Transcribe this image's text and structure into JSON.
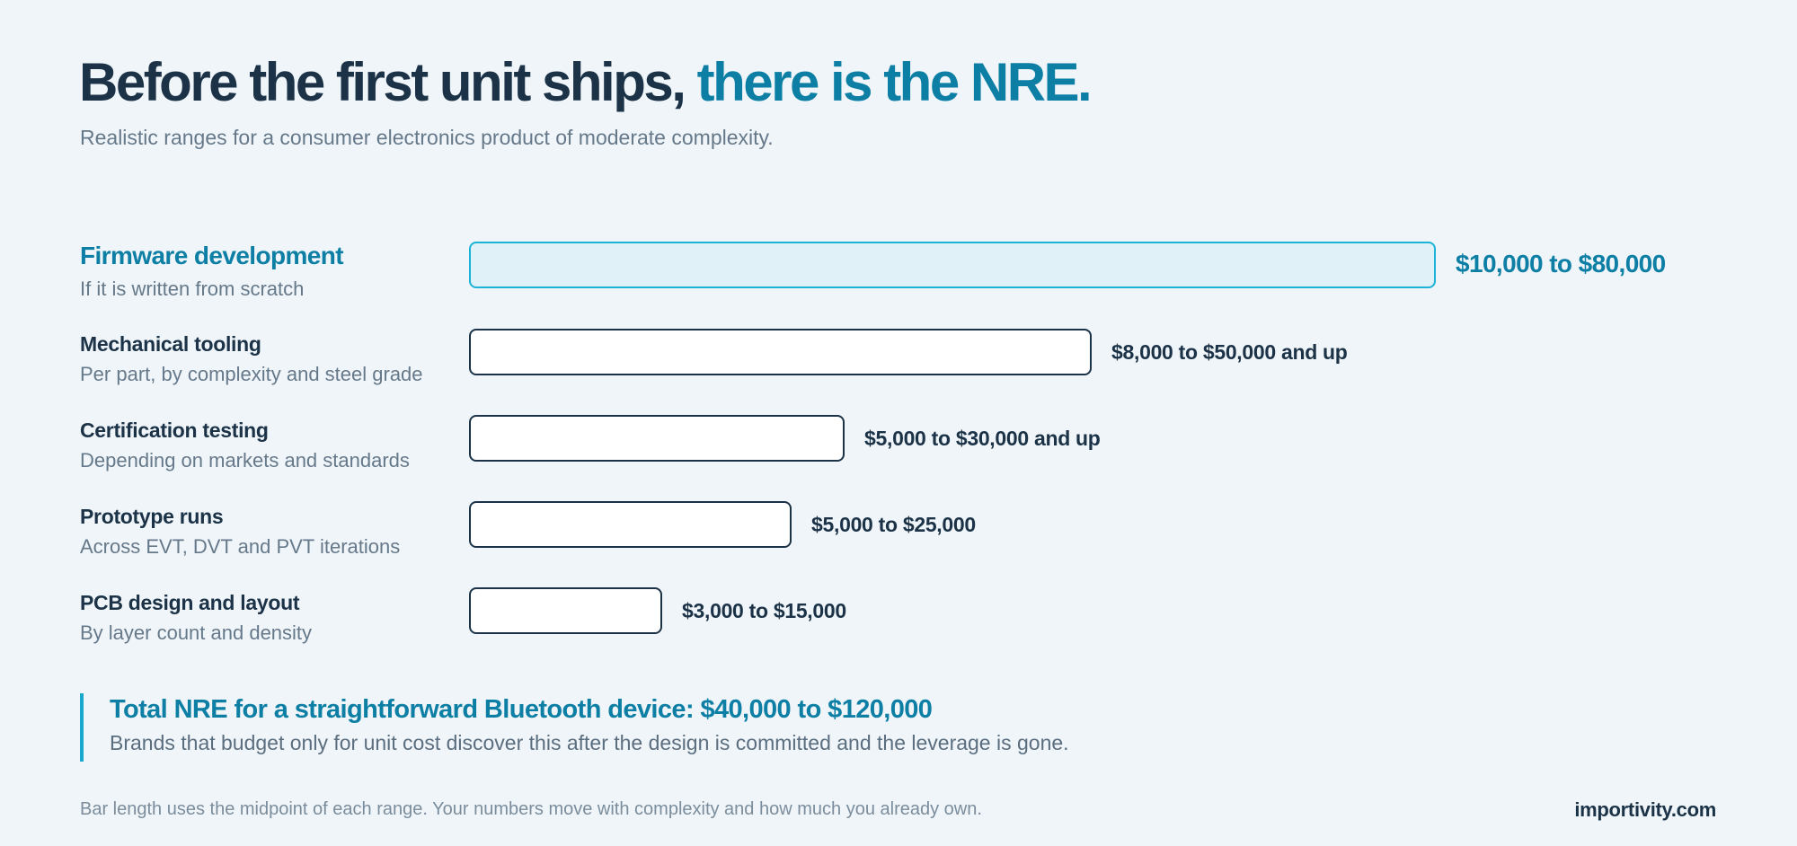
{
  "header": {
    "title_main": "Before the first unit ships,",
    "title_accent": "there is the NRE.",
    "subtitle": "Realistic ranges for a consumer electronics product of moderate complexity."
  },
  "colors": {
    "ink": "#1b3247",
    "accent": "#0d7fa5",
    "accent_border": "#1bb3d6",
    "accent_fill": "#e0f2f8",
    "bar_fill": "#ffffff",
    "muted": "#66798a",
    "background": "#eff5f9"
  },
  "chart_data": {
    "type": "bar",
    "orientation": "horizontal",
    "value_basis": "midpoint of each range",
    "categories": [
      "Firmware development",
      "Mechanical tooling",
      "Certification testing",
      "Prototype runs",
      "PCB design and layout"
    ],
    "descriptions": [
      "If it is written from scratch",
      "Per part, by complexity and steel grade",
      "Depending on markets and standards",
      "Across EVT, DVT and PVT iterations",
      "By layer count and density"
    ],
    "range_labels": [
      "$10,000 to $80,000",
      "$8,000 to $50,000 and up",
      "$5,000 to $30,000 and up",
      "$5,000 to $25,000",
      "$3,000 to $15,000"
    ],
    "ranges": [
      [
        10000,
        80000
      ],
      [
        8000,
        50000
      ],
      [
        5000,
        30000
      ],
      [
        5000,
        25000
      ],
      [
        3000,
        15000
      ]
    ],
    "values": [
      45000,
      29000,
      17500,
      15000,
      9000
    ],
    "highlighted_index": 0,
    "xlim": [
      0,
      45000
    ],
    "grid": false,
    "legend": "none"
  },
  "callout": {
    "title": "Total NRE for a straightforward Bluetooth device: $40,000 to $120,000",
    "text": "Brands that budget only for unit cost discover this after the design is committed and the leverage is gone."
  },
  "footer": {
    "note": "Bar length uses the midpoint of each range. Your numbers move with complexity and how much you already own.",
    "brand": "importivity.com"
  }
}
